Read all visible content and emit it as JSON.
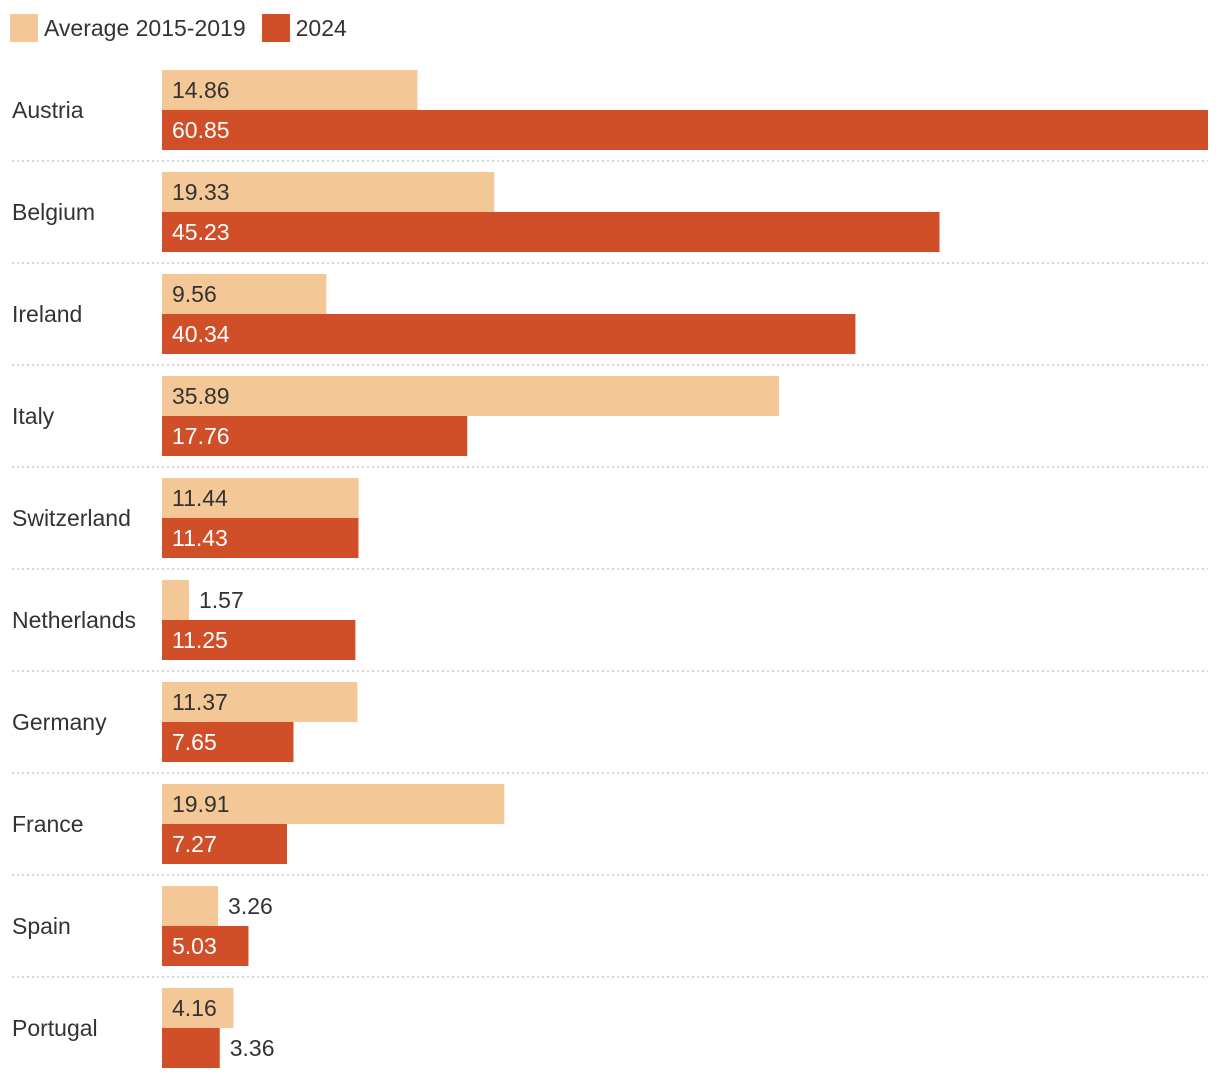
{
  "chart_data": {
    "type": "bar",
    "orientation": "horizontal",
    "categories": [
      "Austria",
      "Belgium",
      "Ireland",
      "Italy",
      "Switzerland",
      "Netherlands",
      "Germany",
      "France",
      "Spain",
      "Portugal"
    ],
    "series": [
      {
        "name": "Average 2015-2019",
        "color": "#f4c797",
        "values": [
          14.86,
          19.33,
          9.56,
          35.89,
          11.44,
          1.57,
          11.37,
          19.91,
          3.26,
          4.16
        ],
        "labels": [
          "14.86",
          "19.33",
          "9.56",
          "35.89",
          "11.44",
          "1.57",
          "11.37",
          "19.91",
          "3.26",
          "4.16"
        ]
      },
      {
        "name": "2024",
        "color": "#d04f29",
        "values": [
          60.85,
          45.23,
          40.34,
          17.76,
          11.43,
          11.25,
          7.65,
          7.27,
          5.03,
          3.36
        ],
        "labels": [
          "60.85",
          "45.23",
          "40.34",
          "17.76",
          "11.43",
          "11.25",
          "7.65",
          "7.27",
          "5.03",
          "3.36"
        ]
      }
    ],
    "xlim": [
      0,
      60.85
    ],
    "grid": false,
    "legend_position": "top-left",
    "separator_style": "dotted"
  }
}
